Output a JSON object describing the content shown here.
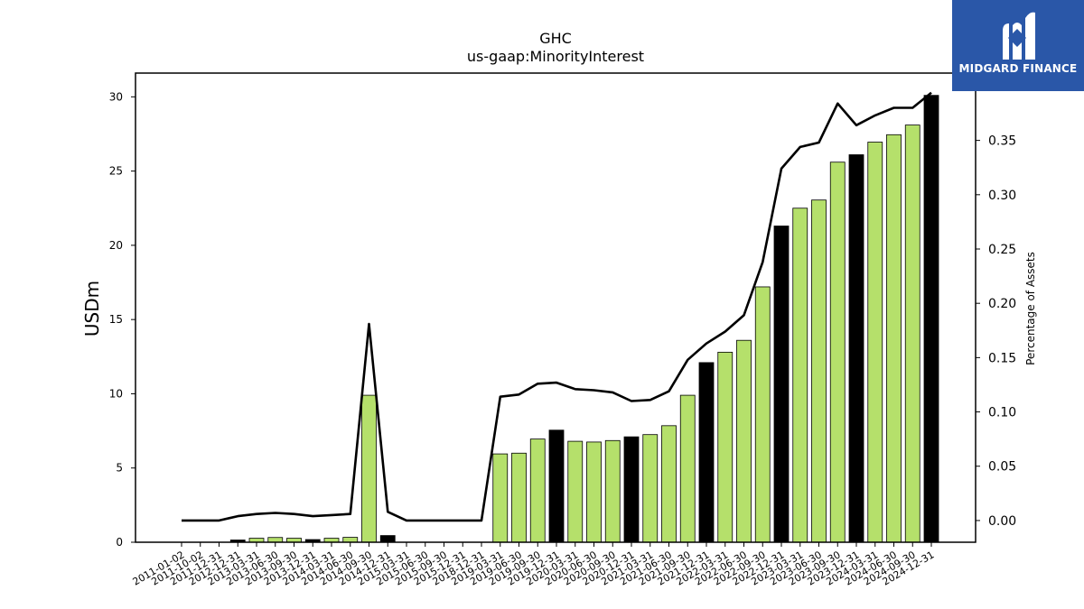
{
  "logo": {
    "text": "MIDGARD FINANCE",
    "color": "#2a57a8"
  },
  "chart_data": {
    "type": "bar",
    "title": "GHC",
    "subtitle": "us-gaap:MinorityInterest",
    "ylabel": "USDm",
    "y2label": "Percentage of Assets",
    "ylim": [
      0,
      31.6
    ],
    "y2lim": [
      -0.02,
      0.412
    ],
    "yticks": [
      "0",
      "5",
      "10",
      "15",
      "20",
      "25",
      "30"
    ],
    "y2ticks": [
      "0.00",
      "0.05",
      "0.10",
      "0.15",
      "0.20",
      "0.25",
      "0.30",
      "0.35"
    ],
    "colors": {
      "annual_bar": "#000000",
      "quarter_bar": "#b5e06b",
      "line": "#000000"
    },
    "categories": [
      "2011-01-02",
      "2011-10-02",
      "2011-12-31",
      "2012-12-31",
      "2013-03-31",
      "2013-06-30",
      "2013-09-30",
      "2013-12-31",
      "2014-03-31",
      "2014-06-30",
      "2014-09-30",
      "2014-12-31",
      "2015-03-31",
      "2015-06-30",
      "2015-09-30",
      "2015-12-31",
      "2018-12-31",
      "2019-03-31",
      "2019-06-30",
      "2019-09-30",
      "2019-12-31",
      "2020-03-31",
      "2020-06-30",
      "2020-09-30",
      "2020-12-31",
      "2021-03-31",
      "2021-06-30",
      "2021-09-30",
      "2021-12-31",
      "2022-03-31",
      "2022-06-30",
      "2022-09-30",
      "2022-12-31",
      "2023-03-31",
      "2023-06-30",
      "2023-09-30",
      "2023-12-31",
      "2024-03-31",
      "2024-06-30",
      "2024-09-30",
      "2024-12-31"
    ],
    "series": [
      {
        "type": "bar",
        "values": [
          0,
          0,
          0,
          0.15,
          0.27,
          0.32,
          0.27,
          0.18,
          0.27,
          0.33,
          9.9,
          0.45,
          0,
          0,
          0,
          0,
          0,
          5.95,
          6.0,
          6.95,
          7.55,
          6.8,
          6.75,
          6.85,
          7.1,
          7.25,
          7.85,
          9.9,
          12.1,
          12.8,
          13.6,
          17.2,
          21.3,
          22.5,
          23.05,
          25.6,
          26.1,
          26.95,
          27.45,
          28.1,
          30.1
        ],
        "annual": [
          false,
          false,
          false,
          true,
          false,
          false,
          false,
          true,
          false,
          false,
          false,
          true,
          false,
          false,
          false,
          false,
          false,
          false,
          false,
          false,
          true,
          false,
          false,
          false,
          true,
          false,
          false,
          false,
          true,
          false,
          false,
          false,
          true,
          false,
          false,
          false,
          true,
          false,
          false,
          false,
          true
        ]
      },
      {
        "type": "line",
        "axis": "right",
        "values": [
          0,
          0,
          0,
          0.004,
          0.006,
          0.007,
          0.006,
          0.004,
          0.005,
          0.006,
          0.181,
          0.008,
          0,
          0,
          0,
          0,
          0,
          0.114,
          0.116,
          0.126,
          0.127,
          0.121,
          0.12,
          0.118,
          0.11,
          0.111,
          0.119,
          0.148,
          0.163,
          0.174,
          0.189,
          0.238,
          0.324,
          0.344,
          0.348,
          0.384,
          0.364,
          0.373,
          0.38,
          0.38,
          0.394
        ]
      }
    ]
  }
}
